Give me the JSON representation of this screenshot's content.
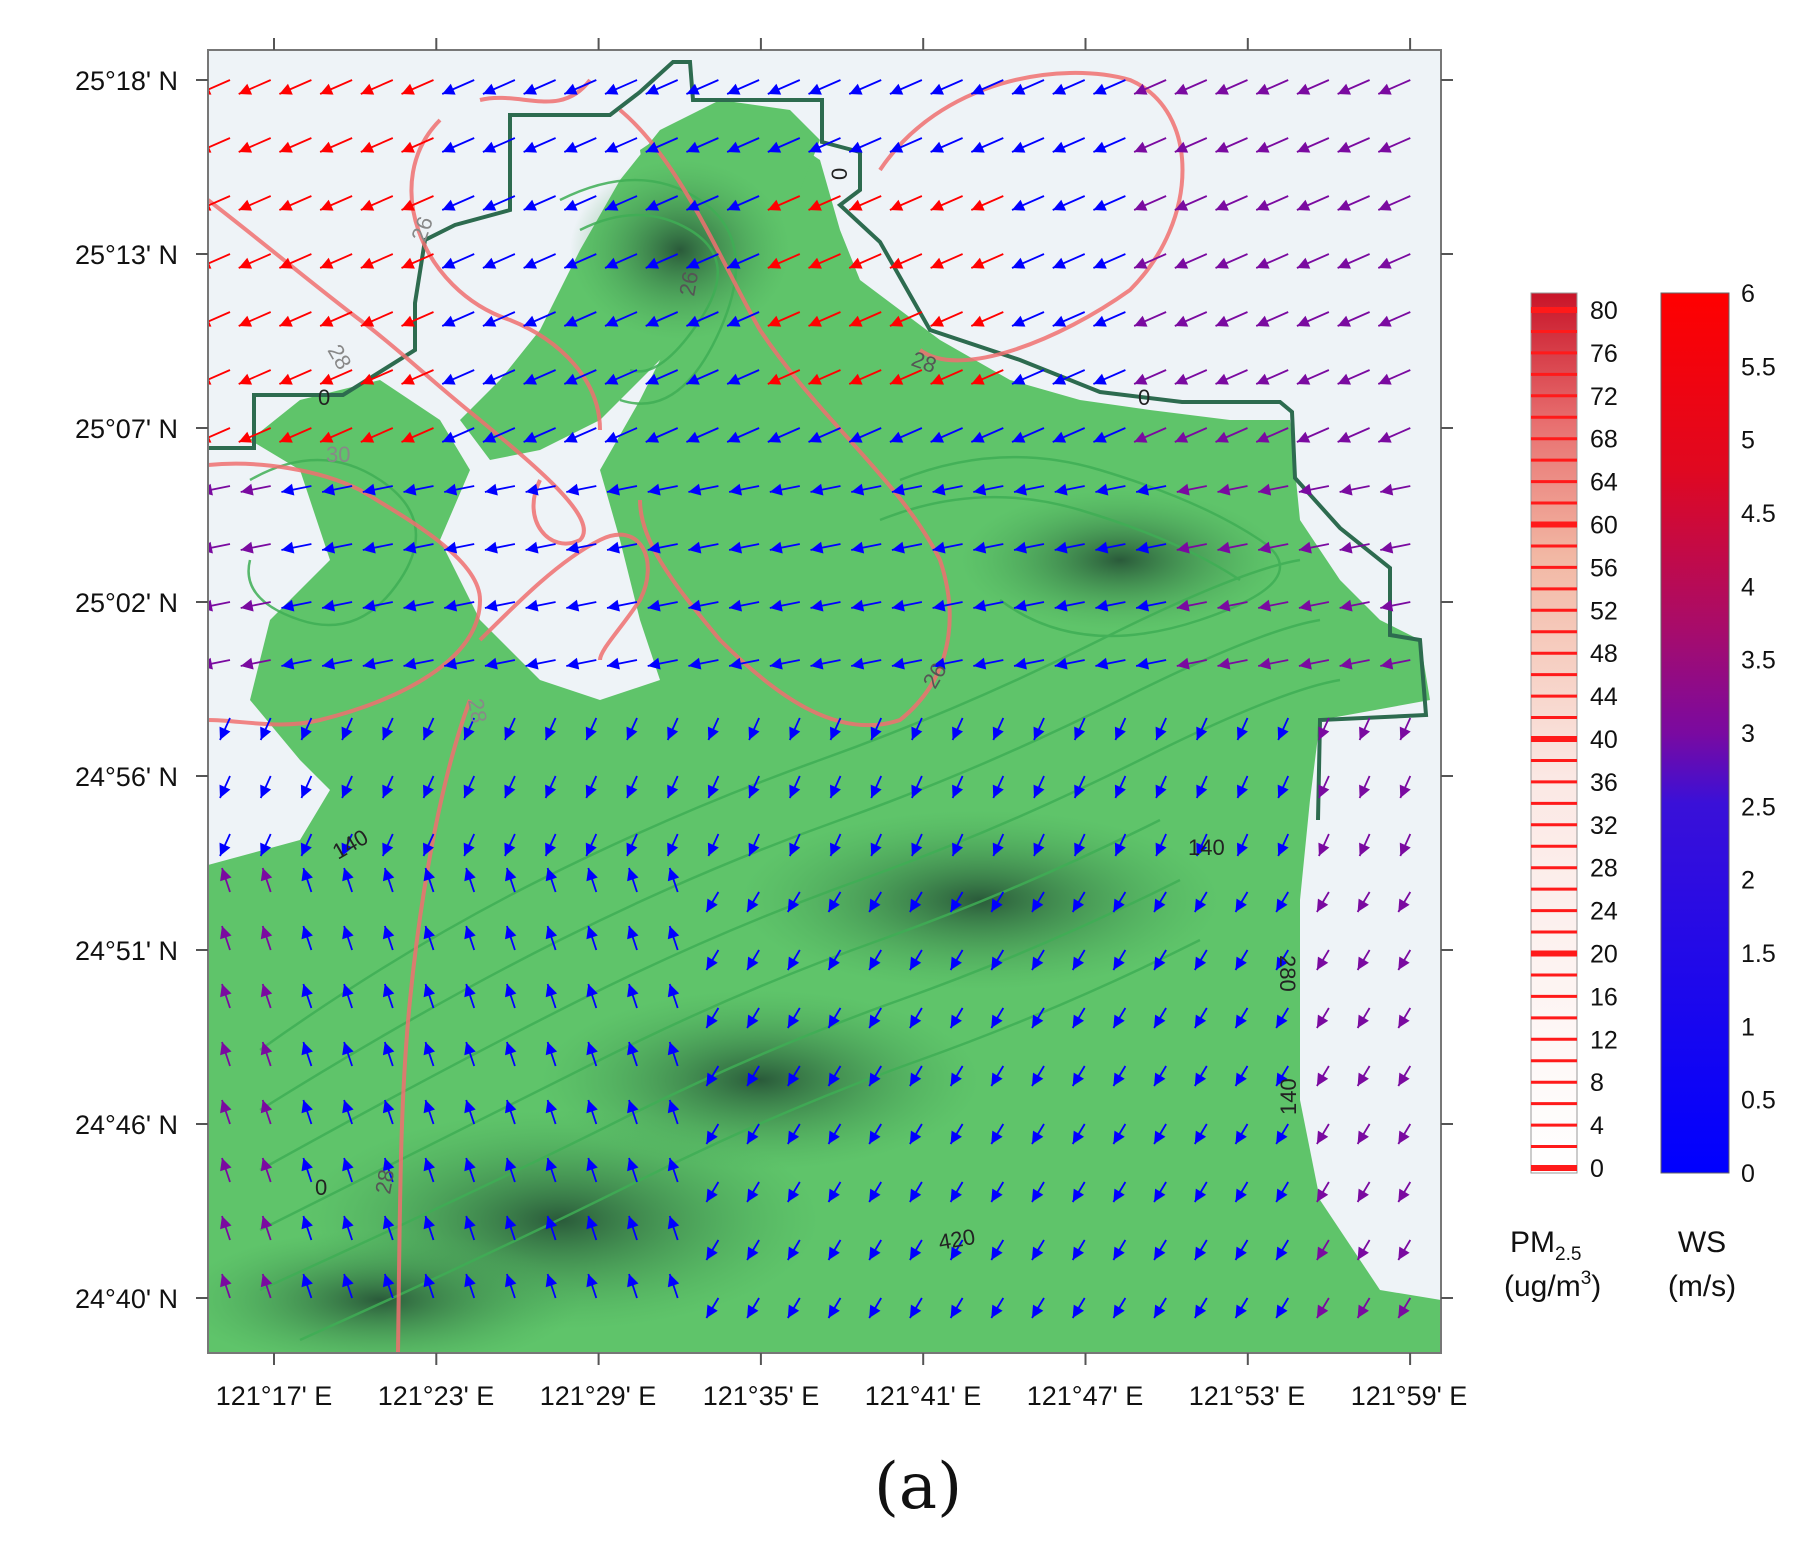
{
  "map": {
    "lat_ticks": [
      "25°18' N",
      "25°13' N",
      "25°07' N",
      "25°02' N",
      "24°56' N",
      "24°51' N",
      "24°46' N",
      "24°40' N"
    ],
    "lon_ticks": [
      "121°17' E",
      "121°23' E",
      "121°29' E",
      "121°35' E",
      "121°41' E",
      "121°47' E",
      "121°53' E",
      "121°59' E"
    ],
    "pm25_contour_labels": [
      "26",
      "28",
      "30",
      "28",
      "26",
      "28",
      "26",
      "28"
    ],
    "terrain_contour_labels": [
      "0",
      "0",
      "0",
      "140",
      "140",
      "140",
      "420",
      "280",
      "0"
    ],
    "colors": {
      "terrain_light": "#5fc46a",
      "terrain_dark": "#2f6b48",
      "sea": "#eef3f7",
      "pm25_contour": "#f07070",
      "coast": "#2d6b4f"
    }
  },
  "colorbars": {
    "pm25": {
      "title_main": "PM",
      "title_sub": "2.5",
      "unit": "(ug/m",
      "unit_sup": "3",
      "unit_end": ")",
      "ticks": [
        "80",
        "76",
        "72",
        "68",
        "64",
        "60",
        "56",
        "52",
        "48",
        "44",
        "40",
        "36",
        "32",
        "28",
        "24",
        "20",
        "16",
        "12",
        "8",
        "4",
        "0"
      ],
      "range": [
        0,
        82
      ]
    },
    "ws": {
      "title": "WS",
      "unit": "(m/s)",
      "ticks": [
        "6",
        "5.5",
        "5",
        "4.5",
        "4",
        "3.5",
        "3",
        "2.5",
        "2",
        "1.5",
        "1",
        "0.5",
        "0"
      ],
      "range": [
        0,
        6
      ],
      "colors": [
        "#0000ff",
        "#7a0aa0",
        "#ff0000"
      ]
    }
  },
  "panel_label": "(a)"
}
